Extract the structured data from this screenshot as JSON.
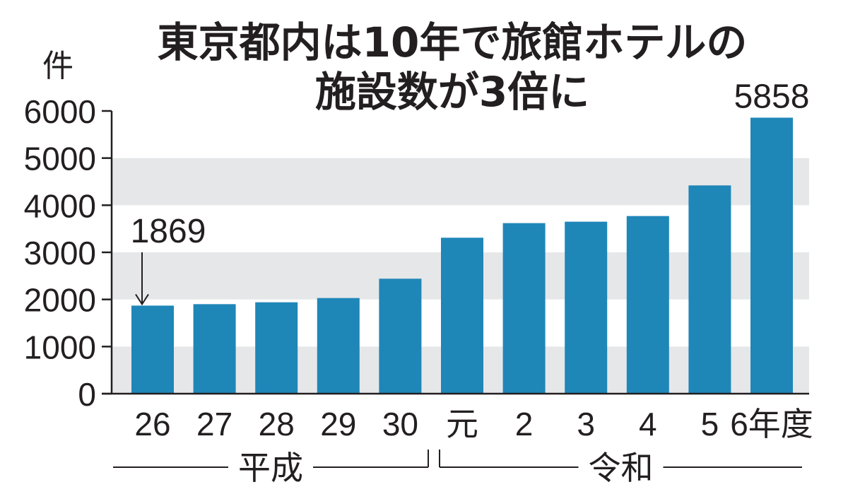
{
  "chart_data": {
    "type": "bar",
    "title": "東京都内は10年で旅館ホテルの",
    "subtitle": "施設数が3倍に",
    "ylabel": "件",
    "xlabel": "",
    "ylim": [
      0,
      6000
    ],
    "y_ticks": [
      "0",
      "1000",
      "2000",
      "3000",
      "4000",
      "5000",
      "6000"
    ],
    "grid": "alternating-bands",
    "categories": [
      "26",
      "27",
      "28",
      "29",
      "30",
      "元",
      "2",
      "3",
      "4",
      "5",
      "6年度"
    ],
    "values": [
      1869,
      1900,
      1940,
      2030,
      2440,
      3310,
      3620,
      3650,
      3770,
      4420,
      5858
    ],
    "annotations": [
      {
        "category": "26",
        "text": "1869",
        "arrow": true
      },
      {
        "category": "6年度",
        "text": "5858",
        "arrow": false
      }
    ],
    "eras": [
      {
        "label": "平成",
        "from": "26",
        "to": "30"
      },
      {
        "label": "令和",
        "from": "元",
        "to": "6年度"
      }
    ],
    "colors": {
      "bar": "#1f86b8",
      "band": "#e6e7e9",
      "axis": "#231f20",
      "text": "#231f20"
    }
  }
}
